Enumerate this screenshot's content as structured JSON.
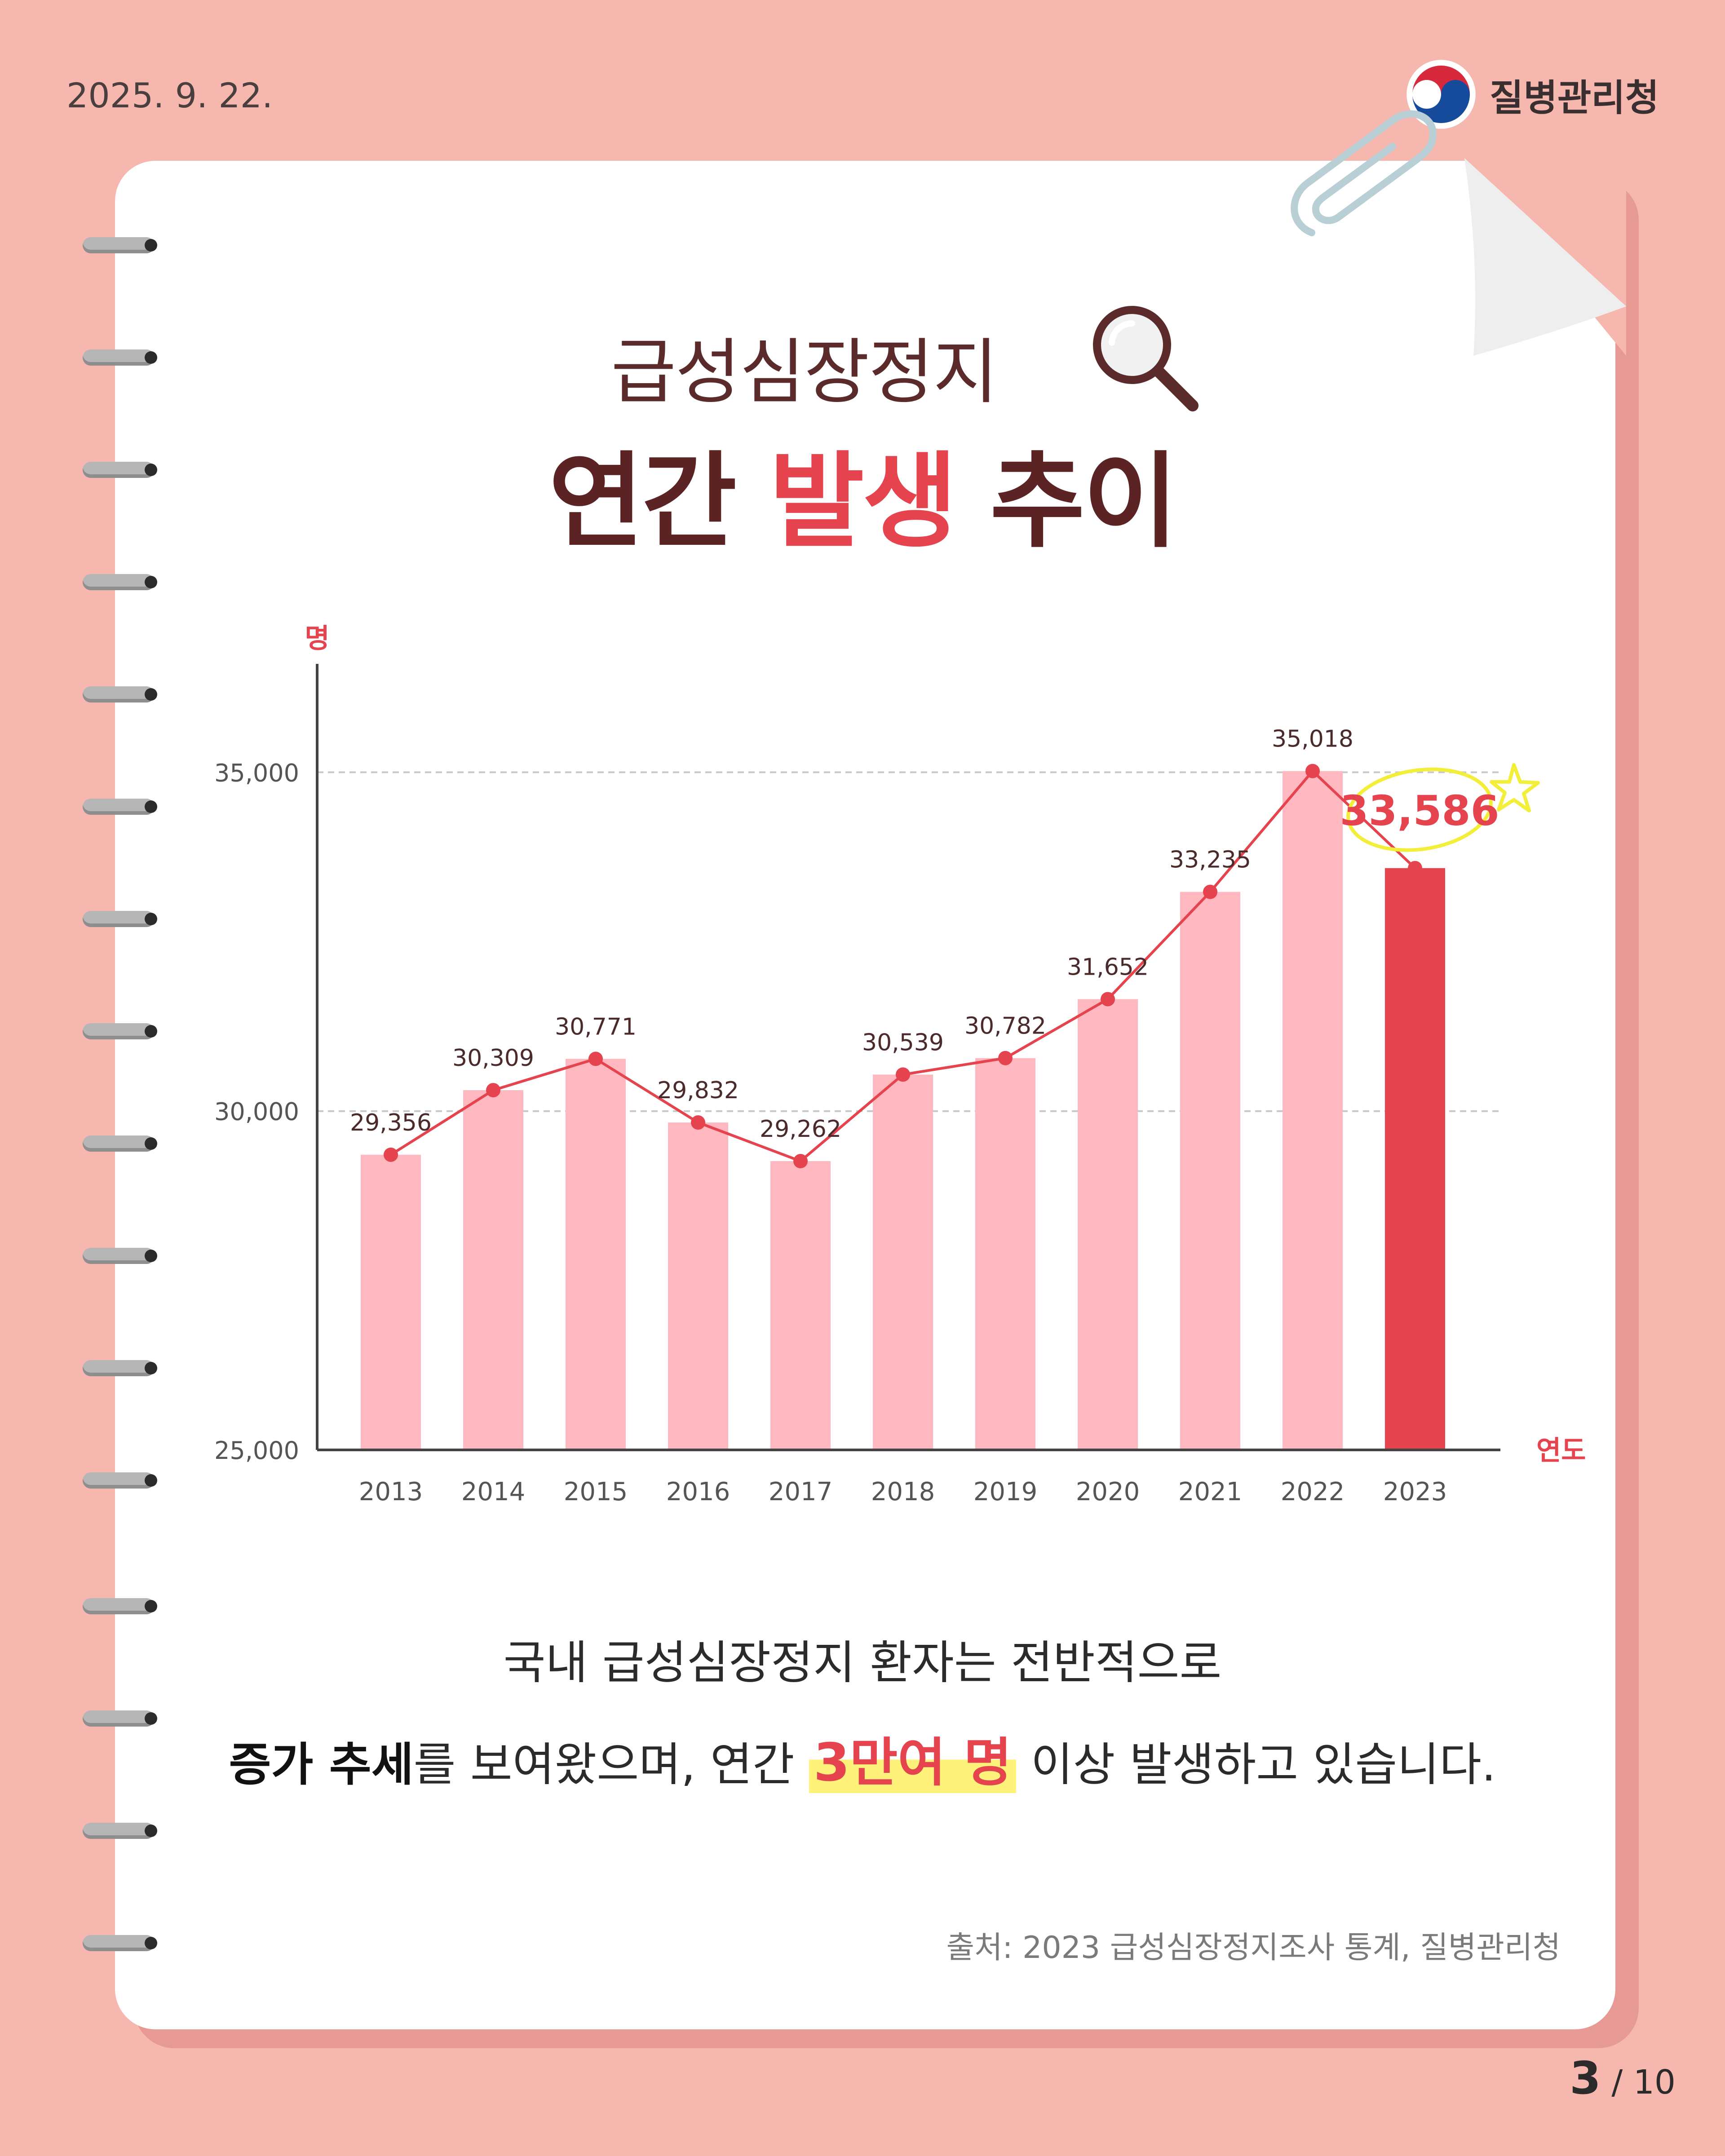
{
  "header": {
    "date": "2025. 9. 22.",
    "org": "질병관리청"
  },
  "title": {
    "line1": "급성심장정지",
    "line2_a": "연간",
    "line2_b": "발생",
    "line2_c": "추이"
  },
  "colors": {
    "bar": "#ffb8c0",
    "highlight_bar": "#e5444f",
    "line": "#e5444f",
    "accent": "#e5444f"
  },
  "chart_data": {
    "type": "bar",
    "categories": [
      "2013",
      "2014",
      "2015",
      "2016",
      "2017",
      "2018",
      "2019",
      "2020",
      "2021",
      "2022",
      "2023"
    ],
    "values": [
      29356,
      30309,
      30771,
      29832,
      29262,
      30539,
      30782,
      31652,
      33235,
      35018,
      33586
    ],
    "value_labels": [
      "29,356",
      "30,309",
      "30,771",
      "29,832",
      "29,262",
      "30,539",
      "30,782",
      "31,652",
      "33,235",
      "35,018",
      "33,586"
    ],
    "highlight_index": 10,
    "line_overlay": true,
    "ylabel": "명",
    "xlabel": "연도",
    "ylim": [
      25000,
      36600
    ],
    "yticks": [
      25000,
      30000,
      35000
    ],
    "ytick_labels": [
      "25,000",
      "30,000",
      "35,000"
    ],
    "grid": "dashed at 30,000 and 35,000"
  },
  "description": {
    "line1": "국내 급성심장정지 환자는 전반적으로",
    "line2_bold": "증가 추세",
    "line2_mid": "를 보여왔으며, 연간 ",
    "line2_highlight": "3만여 명",
    "line2_end": " 이상 발생하고 있습니다."
  },
  "source": "출처: 2023 급성심장정지조사 통계, 질병관리청",
  "pagination": {
    "current": "3",
    "separator": " / ",
    "total": "10"
  }
}
